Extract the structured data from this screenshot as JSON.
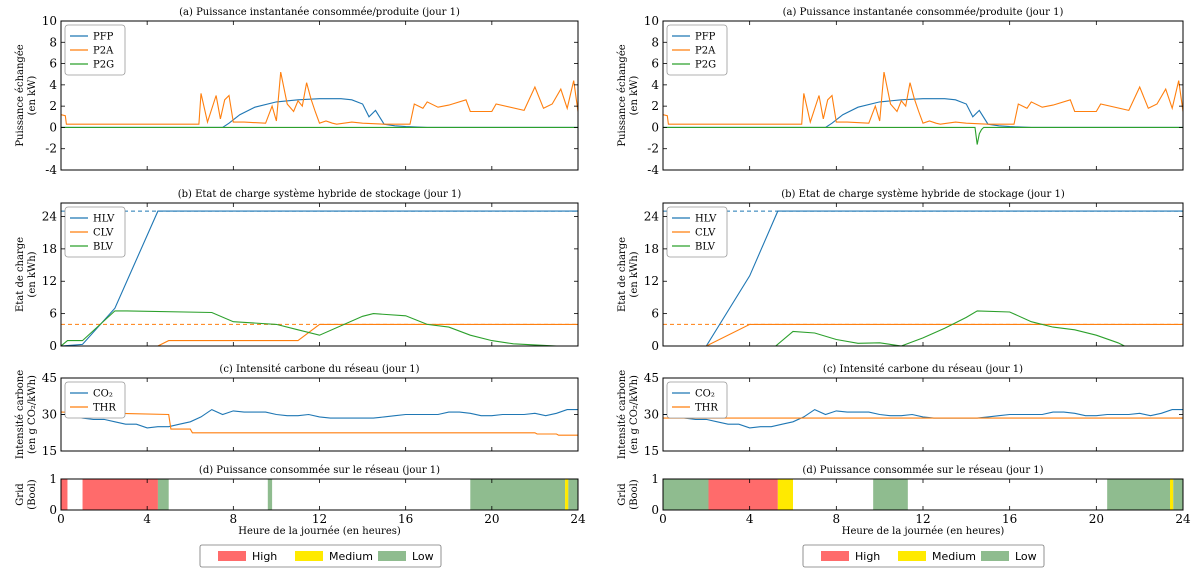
{
  "colors": {
    "PFP": "#1f77b4",
    "P2A": "#ff7f0e",
    "P2G": "#2ca02c",
    "high": "#ff6b6b",
    "medium": "#ffea00",
    "low": "#8fbc8f"
  },
  "legend": {
    "high": "High",
    "medium": "Medium",
    "low": "Low"
  },
  "xlabel": "Heure de la journée (en heures)",
  "chart_data": [
    {
      "id": "L-a",
      "type": "line",
      "title": "(a) Puissance instantanée consommée/produite (jour 1)",
      "ylabel": [
        "Puissance échangée",
        "(en kW)"
      ],
      "xlim": [
        0,
        24
      ],
      "ylim": [
        -4,
        10
      ],
      "yticks": [
        -4,
        -2,
        0,
        2,
        4,
        6,
        8,
        10
      ],
      "xticks": [
        0,
        4,
        8,
        12,
        16,
        20,
        24
      ],
      "series": [
        {
          "name": "PFP",
          "x": [
            0,
            7.5,
            7.8,
            8.3,
            9,
            10,
            11,
            12,
            13,
            13.5,
            14,
            14.3,
            14.6,
            15,
            15.5,
            16,
            17,
            24
          ],
          "y": [
            0,
            0,
            0.4,
            1.2,
            1.9,
            2.4,
            2.6,
            2.7,
            2.7,
            2.6,
            2.2,
            1.0,
            1.6,
            0.3,
            0.15,
            0.08,
            0,
            0
          ]
        },
        {
          "name": "P2A",
          "x": [
            0,
            0.2,
            0.25,
            3,
            6.4,
            6.5,
            6.8,
            7.2,
            7.4,
            7.6,
            7.8,
            8,
            8.5,
            9.5,
            9.8,
            10,
            10.2,
            10.5,
            10.8,
            11,
            11.2,
            11.4,
            11.6,
            11.8,
            12,
            12.3,
            12.6,
            12.8,
            13.5,
            14,
            15,
            16.2,
            16.4,
            16.8,
            17,
            17.5,
            18,
            18.8,
            19,
            20,
            20.2,
            21.5,
            22,
            22.4,
            22.8,
            23.2,
            23.5,
            23.8,
            24
          ],
          "y": [
            1.2,
            1.1,
            0.3,
            0.3,
            0.3,
            3.2,
            0.5,
            3.0,
            0.8,
            2.6,
            3.0,
            0.5,
            0.5,
            0.4,
            2.0,
            0.6,
            5.2,
            2.2,
            1.5,
            2.5,
            2.0,
            4.2,
            2.7,
            1.5,
            0.4,
            0.6,
            0.4,
            0.3,
            0.5,
            0.4,
            0.3,
            0.3,
            2.2,
            1.8,
            2.4,
            1.9,
            2.1,
            2.6,
            1.5,
            1.5,
            2.2,
            1.6,
            3.8,
            1.8,
            2.2,
            3.6,
            1.8,
            4.4,
            1.5
          ]
        },
        {
          "name": "P2G",
          "x": [
            0,
            24
          ],
          "y": [
            0,
            0
          ]
        }
      ]
    },
    {
      "id": "L-b",
      "type": "line",
      "title": "(b) Etat de charge système hybride de stockage (jour 1)",
      "ylabel": [
        "Etat de charge",
        "(en kWh)"
      ],
      "xlim": [
        0,
        24
      ],
      "ylim": [
        0,
        26.5
      ],
      "yticks": [
        0,
        6,
        12,
        18,
        24
      ],
      "xticks": [
        0,
        4,
        8,
        12,
        16,
        20,
        24
      ],
      "series": [
        {
          "name": "HLV",
          "x": [
            0,
            1,
            2.5,
            4.5,
            24
          ],
          "y": [
            0,
            0.3,
            7,
            25,
            25
          ]
        },
        {
          "name": "CLV",
          "x": [
            4.5,
            5,
            11,
            12,
            24
          ],
          "y": [
            0,
            1,
            1,
            4,
            4
          ]
        },
        {
          "name": "BLV",
          "x": [
            0,
            0.3,
            1,
            2.5,
            3,
            7,
            8,
            10,
            11,
            12,
            14,
            14.5,
            16,
            17,
            18,
            19,
            20,
            21,
            22,
            23,
            24
          ],
          "y": [
            0,
            1,
            1,
            6.5,
            6.5,
            6.2,
            4.5,
            4,
            3,
            2,
            5.5,
            6,
            5.6,
            4,
            3.5,
            2,
            1,
            0.4,
            0.2,
            0,
            0
          ]
        }
      ]
    },
    {
      "id": "L-c",
      "type": "line",
      "title": "(c) Intensité carbone du réseau (jour 1)",
      "ylabel": [
        "Intensité carbone",
        "(en g CO₂/kWh)"
      ],
      "xlim": [
        0,
        24
      ],
      "ylim": [
        15,
        45
      ],
      "yticks": [
        15,
        30,
        45
      ],
      "xticks": [
        0,
        4,
        8,
        12,
        16,
        20,
        24
      ],
      "series": [
        {
          "name": "CO₂",
          "x": [
            0,
            0.5,
            1,
            1.5,
            2,
            2.5,
            3,
            3.5,
            4,
            4.5,
            5,
            5.5,
            6,
            6.5,
            7,
            7.5,
            8,
            8.5,
            9,
            9.5,
            10,
            10.5,
            11,
            11.5,
            12,
            12.5,
            13,
            13.5,
            14,
            14.5,
            15,
            15.5,
            16,
            16.5,
            17,
            17.5,
            18,
            18.5,
            19,
            19.5,
            20,
            20.5,
            21,
            21.5,
            22,
            22.5,
            23,
            23.5,
            24
          ],
          "y": [
            30,
            30,
            28.5,
            28,
            28,
            27,
            26,
            26,
            24.5,
            25,
            25,
            26,
            27,
            29,
            32,
            30,
            31.5,
            31,
            31,
            31,
            30,
            29.5,
            29.5,
            30,
            29,
            28.5,
            28.5,
            28.5,
            28.5,
            28.5,
            29,
            29.5,
            30,
            30,
            30,
            30,
            31,
            31,
            30.5,
            29.5,
            29.5,
            30,
            30,
            30,
            30.5,
            29.5,
            30.5,
            32,
            32
          ]
        },
        {
          "name": "THR",
          "x": [
            0,
            5,
            5.1,
            6,
            6.1,
            22,
            22.1,
            23,
            23.1,
            24
          ],
          "y": [
            31,
            30,
            24,
            24,
            22.5,
            22.5,
            22,
            22,
            21.5,
            21.5
          ]
        }
      ]
    },
    {
      "id": "L-d",
      "type": "bar",
      "title": "(d) Puissance consommée sur le réseau (jour 1)",
      "ylabel": [
        "Grid",
        "(Bool)"
      ],
      "xlim": [
        0,
        24
      ],
      "ylim": [
        0,
        1
      ],
      "yticks": [
        0,
        1
      ],
      "xticks": [
        0,
        4,
        8,
        12,
        16,
        20,
        24
      ],
      "segments": [
        {
          "start": 0,
          "end": 0.3,
          "level": "high"
        },
        {
          "start": 1,
          "end": 4.5,
          "level": "high"
        },
        {
          "start": 4.5,
          "end": 5,
          "level": "low"
        },
        {
          "start": 9.6,
          "end": 9.8,
          "level": "low"
        },
        {
          "start": 19,
          "end": 23.4,
          "level": "low"
        },
        {
          "start": 23.4,
          "end": 23.55,
          "level": "medium"
        },
        {
          "start": 23.55,
          "end": 24,
          "level": "low"
        }
      ]
    },
    {
      "id": "R-a",
      "type": "line",
      "title": "(a) Puissance instantanée consommée/produite (jour 1)",
      "ylabel": [
        "Puissance échangée",
        "(en kW)"
      ],
      "xlim": [
        0,
        24
      ],
      "ylim": [
        -4,
        10
      ],
      "yticks": [
        -4,
        -2,
        0,
        2,
        4,
        6,
        8,
        10
      ],
      "xticks": [
        0,
        4,
        8,
        12,
        16,
        20,
        24
      ],
      "series": [
        {
          "name": "PFP",
          "x": [
            0,
            7.5,
            7.8,
            8.3,
            9,
            10,
            11,
            12,
            13,
            13.5,
            14,
            14.3,
            14.6,
            15,
            15.5,
            16,
            17,
            24
          ],
          "y": [
            0,
            0,
            0.4,
            1.2,
            1.9,
            2.4,
            2.6,
            2.7,
            2.7,
            2.6,
            2.2,
            1.0,
            1.6,
            0.3,
            0.15,
            0.08,
            0,
            0
          ]
        },
        {
          "name": "P2A",
          "x": [
            0,
            0.2,
            0.25,
            3,
            6.4,
            6.5,
            6.8,
            7.2,
            7.4,
            7.6,
            7.8,
            8,
            8.5,
            9.5,
            9.8,
            10,
            10.2,
            10.5,
            10.8,
            11,
            11.2,
            11.4,
            11.6,
            11.8,
            12,
            12.3,
            12.6,
            12.8,
            13.5,
            14,
            15,
            16.2,
            16.4,
            16.8,
            17,
            17.5,
            18,
            18.8,
            19,
            20,
            20.2,
            21.5,
            22,
            22.4,
            22.8,
            23.2,
            23.5,
            23.8,
            24
          ],
          "y": [
            1.2,
            1.1,
            0.3,
            0.3,
            0.3,
            3.2,
            0.5,
            3.0,
            0.8,
            2.6,
            3.0,
            0.5,
            0.5,
            0.4,
            2.0,
            0.6,
            5.2,
            2.2,
            1.5,
            2.5,
            2.0,
            4.2,
            2.7,
            1.5,
            0.4,
            0.6,
            0.4,
            0.3,
            0.5,
            0.4,
            0.3,
            0.3,
            2.2,
            1.8,
            2.4,
            1.9,
            2.1,
            2.6,
            1.5,
            1.5,
            2.2,
            1.6,
            3.8,
            1.8,
            2.2,
            3.6,
            1.8,
            4.4,
            1.5
          ]
        },
        {
          "name": "P2G",
          "x": [
            0,
            14.4,
            14.5,
            14.6,
            14.7,
            14.8,
            24
          ],
          "y": [
            0,
            0,
            -1.6,
            -0.6,
            -0.2,
            0,
            0
          ]
        }
      ]
    },
    {
      "id": "R-b",
      "type": "line",
      "title": "(b) Etat de charge système hybride de stockage (jour 1)",
      "ylabel": [
        "Etat de charge",
        "(en kWh)"
      ],
      "xlim": [
        0,
        24
      ],
      "ylim": [
        0,
        26.5
      ],
      "yticks": [
        0,
        6,
        12,
        18,
        24
      ],
      "xticks": [
        0,
        4,
        8,
        12,
        16,
        20,
        24
      ],
      "series": [
        {
          "name": "HLV",
          "x": [
            0,
            2,
            4,
            5.3,
            24
          ],
          "y": [
            0,
            0,
            13,
            25,
            25
          ]
        },
        {
          "name": "CLV",
          "x": [
            2,
            4,
            24
          ],
          "y": [
            0,
            4,
            4
          ]
        },
        {
          "name": "BLV",
          "x": [
            5.2,
            6,
            7,
            8,
            9,
            10,
            10.5,
            11,
            12,
            13,
            14,
            14.5,
            16,
            17,
            18,
            19,
            20,
            21,
            21.3,
            24
          ],
          "y": [
            0,
            2.7,
            2.4,
            1.2,
            0.5,
            0.6,
            0.3,
            0,
            1.5,
            3.3,
            5.3,
            6.5,
            6.3,
            4.5,
            3.5,
            3,
            2,
            0.6,
            0,
            0
          ]
        }
      ]
    },
    {
      "id": "R-c",
      "type": "line",
      "title": "(c) Intensité carbone du réseau (jour 1)",
      "ylabel": [
        "Intensité carbone",
        "(en g CO₂/kWh)"
      ],
      "xlim": [
        0,
        24
      ],
      "ylim": [
        15,
        45
      ],
      "yticks": [
        15,
        30,
        45
      ],
      "xticks": [
        0,
        4,
        8,
        12,
        16,
        20,
        24
      ],
      "series": [
        {
          "name": "CO₂",
          "x": [
            0,
            0.5,
            1,
            1.5,
            2,
            2.5,
            3,
            3.5,
            4,
            4.5,
            5,
            5.5,
            6,
            6.5,
            7,
            7.5,
            8,
            8.5,
            9,
            9.5,
            10,
            10.5,
            11,
            11.5,
            12,
            12.5,
            13,
            13.5,
            14,
            14.5,
            15,
            15.5,
            16,
            16.5,
            17,
            17.5,
            18,
            18.5,
            19,
            19.5,
            20,
            20.5,
            21,
            21.5,
            22,
            22.5,
            23,
            23.5,
            24
          ],
          "y": [
            30,
            30,
            28.5,
            28,
            28,
            27,
            26,
            26,
            24.5,
            25,
            25,
            26,
            27,
            29,
            32,
            30,
            31.5,
            31,
            31,
            31,
            30,
            29.5,
            29.5,
            30,
            29,
            28.5,
            28.5,
            28.5,
            28.5,
            28.5,
            29,
            29.5,
            30,
            30,
            30,
            30,
            31,
            31,
            30.5,
            29.5,
            29.5,
            30,
            30,
            30,
            30.5,
            29.5,
            30.5,
            32,
            32
          ]
        },
        {
          "name": "THR",
          "x": [
            0,
            24
          ],
          "y": [
            28.5,
            28.5
          ]
        }
      ]
    },
    {
      "id": "R-d",
      "type": "bar",
      "title": "(d) Puissance consommée sur le réseau (jour 1)",
      "ylabel": [
        "Grid",
        "(Bool)"
      ],
      "xlim": [
        0,
        24
      ],
      "ylim": [
        0,
        1
      ],
      "yticks": [
        0,
        1
      ],
      "xticks": [
        0,
        4,
        8,
        12,
        16,
        20,
        24
      ],
      "segments": [
        {
          "start": 0,
          "end": 2.1,
          "level": "low"
        },
        {
          "start": 2.1,
          "end": 5.3,
          "level": "high"
        },
        {
          "start": 5.3,
          "end": 6,
          "level": "medium"
        },
        {
          "start": 9.7,
          "end": 11.3,
          "level": "low"
        },
        {
          "start": 20.5,
          "end": 23.4,
          "level": "low"
        },
        {
          "start": 23.4,
          "end": 23.55,
          "level": "medium"
        },
        {
          "start": 23.55,
          "end": 24,
          "level": "low"
        }
      ]
    }
  ]
}
